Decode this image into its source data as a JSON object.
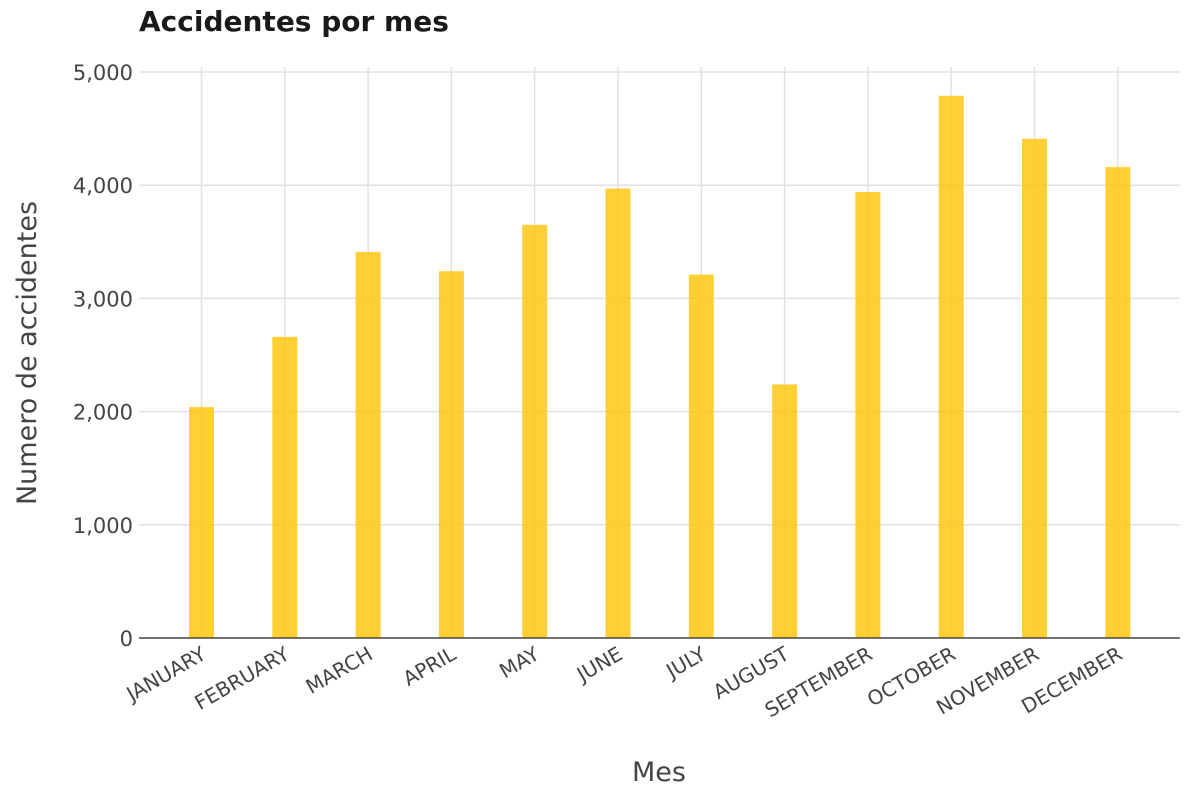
{
  "chart_data": {
    "type": "bar",
    "title": "Accidentes por mes",
    "xlabel": "Mes",
    "ylabel": "Numero de accidentes",
    "categories": [
      "JANUARY",
      "FEBRUARY",
      "MARCH",
      "APRIL",
      "MAY",
      "JUNE",
      "JULY",
      "AUGUST",
      "SEPTEMBER",
      "OCTOBER",
      "NOVEMBER",
      "DECEMBER"
    ],
    "values": [
      2040,
      2660,
      3410,
      3240,
      3650,
      3970,
      3210,
      2240,
      3940,
      4790,
      4410,
      4160
    ],
    "ylim": [
      0,
      5000
    ],
    "yticks": [
      0,
      1000,
      2000,
      3000,
      4000,
      5000
    ],
    "ytick_labels": [
      "0",
      "1,000",
      "2,000",
      "3,000",
      "4,000",
      "5,000"
    ],
    "grid": true,
    "bar_color": "#ffc60a"
  }
}
